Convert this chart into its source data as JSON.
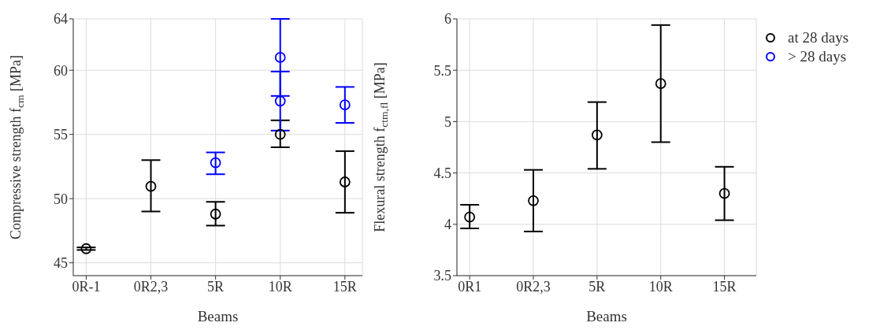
{
  "chart_data": [
    {
      "type": "scatter",
      "xlabel": "Beams",
      "ylabel": "Compressive strength f$_{cm}$ [MPa]",
      "categories": [
        "0R-1",
        "0R2,3",
        "5R",
        "10R",
        "15R"
      ],
      "ylim": [
        44,
        64
      ],
      "yticks": [
        45,
        50,
        55,
        60,
        64
      ],
      "grid": true,
      "marker": "circle",
      "legend": "right",
      "series": [
        {
          "name": "at 28 days",
          "color": "#000000",
          "values": [
            46.1,
            50.95,
            48.8,
            55.0,
            51.3
          ],
          "errors": [
            [
              46.0,
              46.2
            ],
            [
              49.0,
              53.0
            ],
            [
              47.9,
              49.75
            ],
            [
              54.0,
              56.1
            ],
            [
              48.9,
              53.7
            ]
          ]
        },
        {
          "name": "> 28 days",
          "color": "#0000ff",
          "x": [
            "5R",
            "10R",
            "10R",
            "15R"
          ],
          "values": [
            52.8,
            61.0,
            57.6,
            57.3
          ],
          "errors": [
            [
              51.9,
              53.6
            ],
            [
              58.0,
              64.0
            ],
            [
              55.3,
              59.9
            ],
            [
              55.9,
              58.7
            ]
          ]
        }
      ]
    },
    {
      "type": "scatter",
      "xlabel": "Beams",
      "ylabel": "Flexural strength f$_{ctm,fl}$ [MPa]",
      "categories": [
        "0R1",
        "0R2,3",
        "5R",
        "10R",
        "15R"
      ],
      "ylim": [
        3.5,
        6
      ],
      "yticks": [
        3.5,
        4,
        4.5,
        5,
        5.5,
        6
      ],
      "grid": true,
      "marker": "circle",
      "series": [
        {
          "color": "#000000",
          "values": [
            4.07,
            4.23,
            4.87,
            5.37,
            4.3
          ],
          "errors": [
            [
              3.96,
              4.19
            ],
            [
              3.93,
              4.53
            ],
            [
              4.54,
              5.19
            ],
            [
              4.8,
              5.94
            ],
            [
              4.04,
              4.56
            ]
          ]
        }
      ]
    }
  ]
}
